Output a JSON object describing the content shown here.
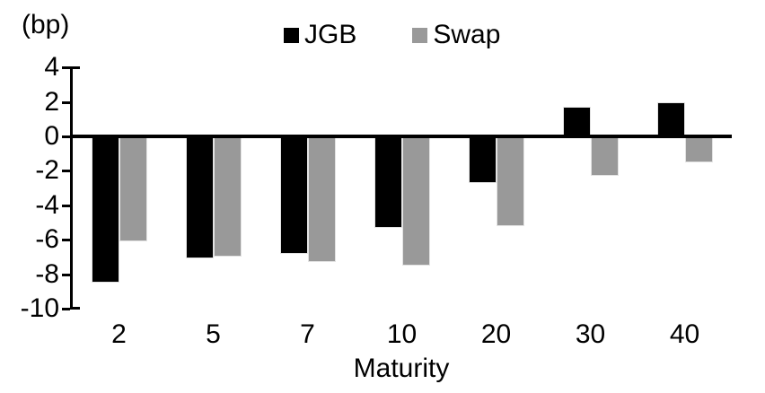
{
  "chart_data": {
    "type": "bar",
    "title": "(bp)",
    "xlabel": "Maturity",
    "ylabel": "",
    "categories": [
      "2",
      "5",
      "7",
      "10",
      "20",
      "30",
      "40"
    ],
    "series": [
      {
        "name": "JGB",
        "color": "#000000",
        "values": [
          -8.5,
          -7.1,
          -6.8,
          -5.3,
          -2.7,
          1.7,
          2.0
        ]
      },
      {
        "name": "Swap",
        "color": "#999999",
        "values": [
          -6.1,
          -7.0,
          -7.3,
          -7.5,
          -5.2,
          -2.3,
          -1.5
        ]
      }
    ],
    "ylim": [
      -10,
      4
    ],
    "yticks": [
      4,
      2,
      0,
      -2,
      -4,
      -6,
      -8,
      -10
    ],
    "grid": false,
    "legend_position": "top-center",
    "axis_color": "#000000",
    "background_color": "#ffffff"
  }
}
